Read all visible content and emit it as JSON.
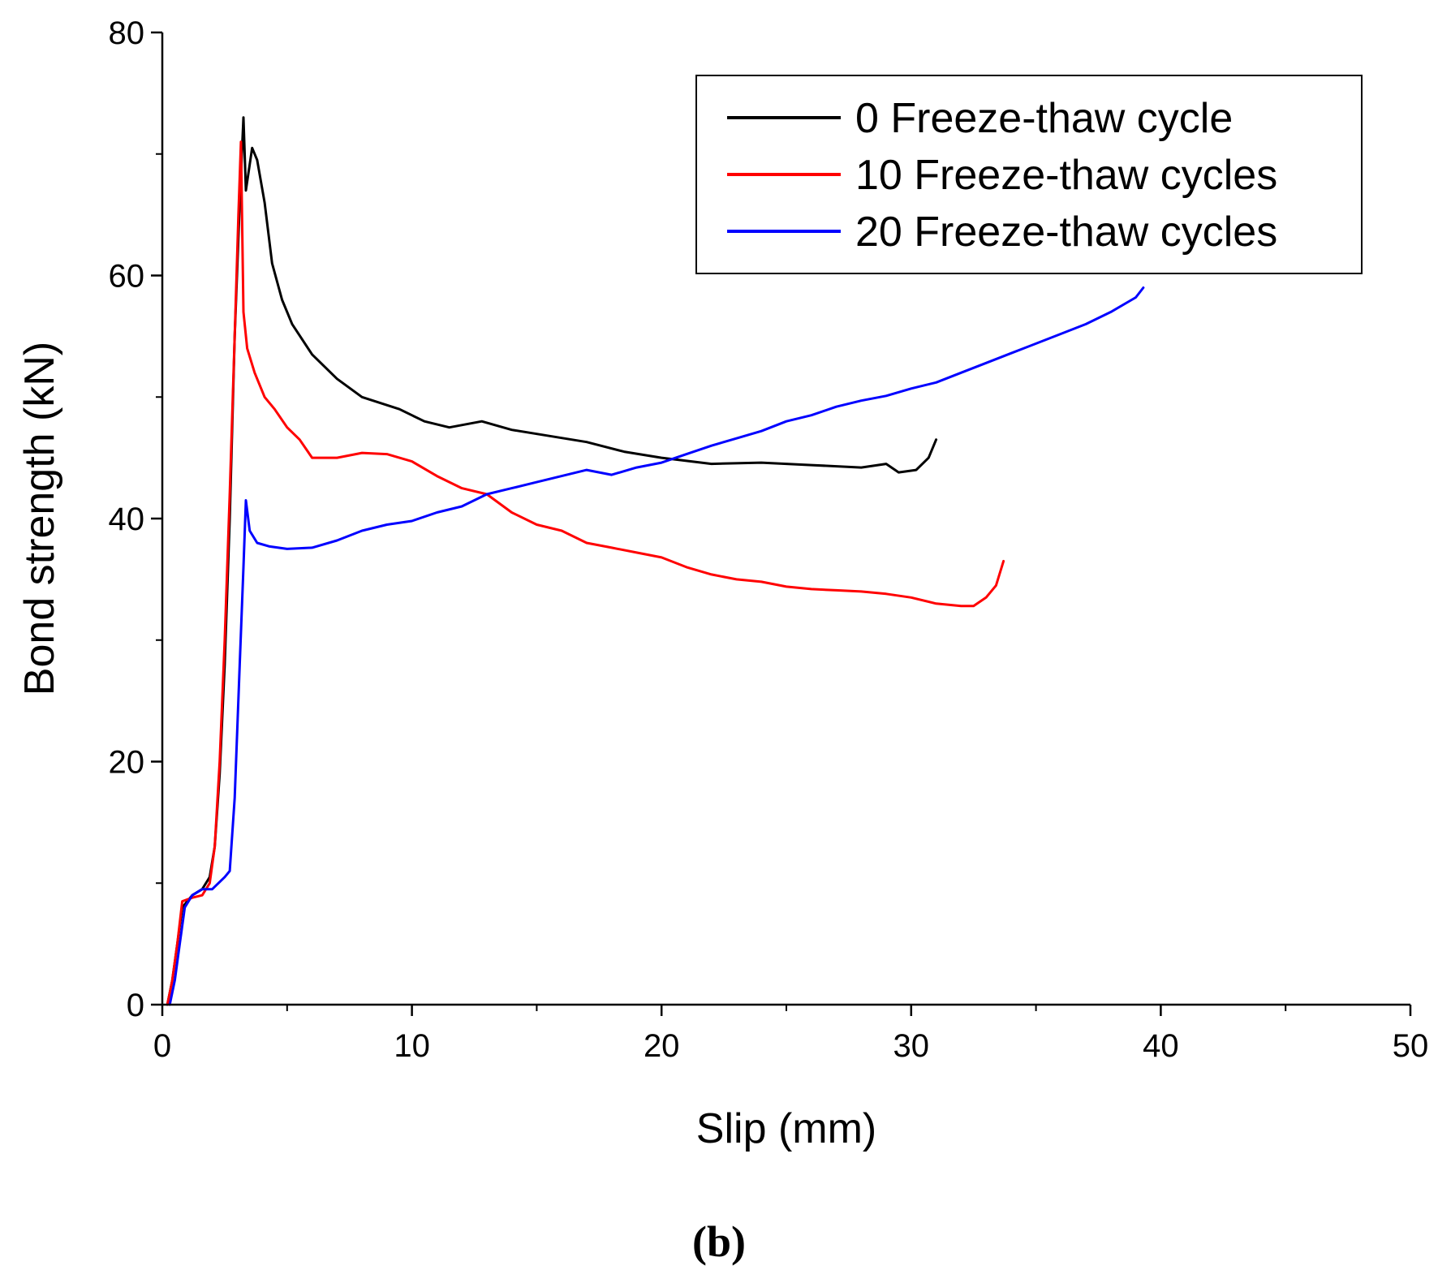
{
  "chart_data": {
    "type": "line",
    "title": "",
    "xlabel": "Slip (mm)",
    "ylabel": "Bond strength (kN)",
    "xlim": [
      0,
      50
    ],
    "ylim": [
      0,
      80
    ],
    "xticks": [
      0,
      10,
      20,
      30,
      40,
      50
    ],
    "yticks": [
      0,
      20,
      40,
      60,
      80
    ],
    "grid": false,
    "legend_position": "top-right",
    "panel_label": "(b)",
    "series": [
      {
        "name": "0 Freeze-thaw cycle",
        "color": "#000000",
        "points": [
          [
            0.2,
            0
          ],
          [
            0.4,
            2
          ],
          [
            0.6,
            5
          ],
          [
            0.8,
            8
          ],
          [
            1.2,
            9
          ],
          [
            1.6,
            9.5
          ],
          [
            1.9,
            10.5
          ],
          [
            2.1,
            13
          ],
          [
            2.3,
            19
          ],
          [
            2.5,
            28
          ],
          [
            2.7,
            40
          ],
          [
            2.9,
            55
          ],
          [
            3.1,
            66
          ],
          [
            3.25,
            73
          ],
          [
            3.35,
            67
          ],
          [
            3.6,
            70.5
          ],
          [
            3.8,
            69.5
          ],
          [
            4.1,
            66
          ],
          [
            4.4,
            61
          ],
          [
            4.8,
            58
          ],
          [
            5.2,
            56
          ],
          [
            6,
            53.5
          ],
          [
            7,
            51.5
          ],
          [
            8,
            50
          ],
          [
            9.5,
            49
          ],
          [
            10.5,
            48
          ],
          [
            11.5,
            47.5
          ],
          [
            12.8,
            48
          ],
          [
            14,
            47.3
          ],
          [
            15.5,
            46.8
          ],
          [
            17,
            46.3
          ],
          [
            18.5,
            45.5
          ],
          [
            20,
            45
          ],
          [
            22,
            44.5
          ],
          [
            24,
            44.6
          ],
          [
            26,
            44.4
          ],
          [
            28,
            44.2
          ],
          [
            29,
            44.5
          ],
          [
            29.5,
            43.8
          ],
          [
            30.2,
            44
          ],
          [
            30.7,
            45
          ],
          [
            31,
            46.5
          ]
        ]
      },
      {
        "name": "10 Freeze-thaw cycles",
        "color": "#ff0000",
        "points": [
          [
            0.2,
            0
          ],
          [
            0.4,
            2
          ],
          [
            0.6,
            5
          ],
          [
            0.8,
            8.5
          ],
          [
            1.2,
            8.8
          ],
          [
            1.6,
            9
          ],
          [
            1.9,
            10
          ],
          [
            2.1,
            13
          ],
          [
            2.3,
            20
          ],
          [
            2.5,
            30
          ],
          [
            2.7,
            42
          ],
          [
            2.9,
            55
          ],
          [
            3.05,
            65
          ],
          [
            3.15,
            71
          ],
          [
            3.25,
            57
          ],
          [
            3.4,
            54
          ],
          [
            3.7,
            52
          ],
          [
            4.1,
            50
          ],
          [
            4.5,
            49
          ],
          [
            5,
            47.5
          ],
          [
            5.5,
            46.5
          ],
          [
            6,
            45
          ],
          [
            7,
            45
          ],
          [
            8,
            45.4
          ],
          [
            9,
            45.3
          ],
          [
            10,
            44.7
          ],
          [
            11,
            43.5
          ],
          [
            12,
            42.5
          ],
          [
            13,
            42
          ],
          [
            14,
            40.5
          ],
          [
            15,
            39.5
          ],
          [
            16,
            39
          ],
          [
            17,
            38
          ],
          [
            18,
            37.6
          ],
          [
            19,
            37.2
          ],
          [
            20,
            36.8
          ],
          [
            21,
            36
          ],
          [
            22,
            35.4
          ],
          [
            23,
            35
          ],
          [
            24,
            34.8
          ],
          [
            25,
            34.4
          ],
          [
            26,
            34.2
          ],
          [
            27,
            34.1
          ],
          [
            28,
            34
          ],
          [
            29,
            33.8
          ],
          [
            30,
            33.5
          ],
          [
            31,
            33
          ],
          [
            32,
            32.8
          ],
          [
            32.5,
            32.8
          ],
          [
            33,
            33.5
          ],
          [
            33.4,
            34.5
          ],
          [
            33.7,
            36.5
          ]
        ]
      },
      {
        "name": "20 Freeze-thaw cycles",
        "color": "#0000ff",
        "points": [
          [
            0.3,
            0
          ],
          [
            0.5,
            2
          ],
          [
            0.7,
            5
          ],
          [
            0.9,
            8
          ],
          [
            1.2,
            9
          ],
          [
            1.6,
            9.5
          ],
          [
            2,
            9.5
          ],
          [
            2.5,
            10.5
          ],
          [
            2.7,
            11
          ],
          [
            2.9,
            17
          ],
          [
            3.1,
            28
          ],
          [
            3.25,
            36
          ],
          [
            3.35,
            41.5
          ],
          [
            3.5,
            39
          ],
          [
            3.8,
            38
          ],
          [
            4.3,
            37.7
          ],
          [
            5,
            37.5
          ],
          [
            6,
            37.6
          ],
          [
            7,
            38.2
          ],
          [
            8,
            39
          ],
          [
            9,
            39.5
          ],
          [
            10,
            39.8
          ],
          [
            11,
            40.5
          ],
          [
            12,
            41
          ],
          [
            13,
            42
          ],
          [
            14,
            42.5
          ],
          [
            15,
            43
          ],
          [
            16,
            43.5
          ],
          [
            17,
            44
          ],
          [
            18,
            43.6
          ],
          [
            19,
            44.2
          ],
          [
            20,
            44.6
          ],
          [
            21,
            45.3
          ],
          [
            22,
            46
          ],
          [
            23,
            46.6
          ],
          [
            24,
            47.2
          ],
          [
            25,
            48
          ],
          [
            26,
            48.5
          ],
          [
            27,
            49.2
          ],
          [
            28,
            49.7
          ],
          [
            29,
            50.1
          ],
          [
            30,
            50.7
          ],
          [
            31,
            51.2
          ],
          [
            32,
            52
          ],
          [
            33,
            52.8
          ],
          [
            34,
            53.6
          ],
          [
            35,
            54.4
          ],
          [
            36,
            55.2
          ],
          [
            37,
            56
          ],
          [
            38,
            57
          ],
          [
            39,
            58.2
          ],
          [
            39.3,
            59
          ]
        ]
      }
    ]
  }
}
